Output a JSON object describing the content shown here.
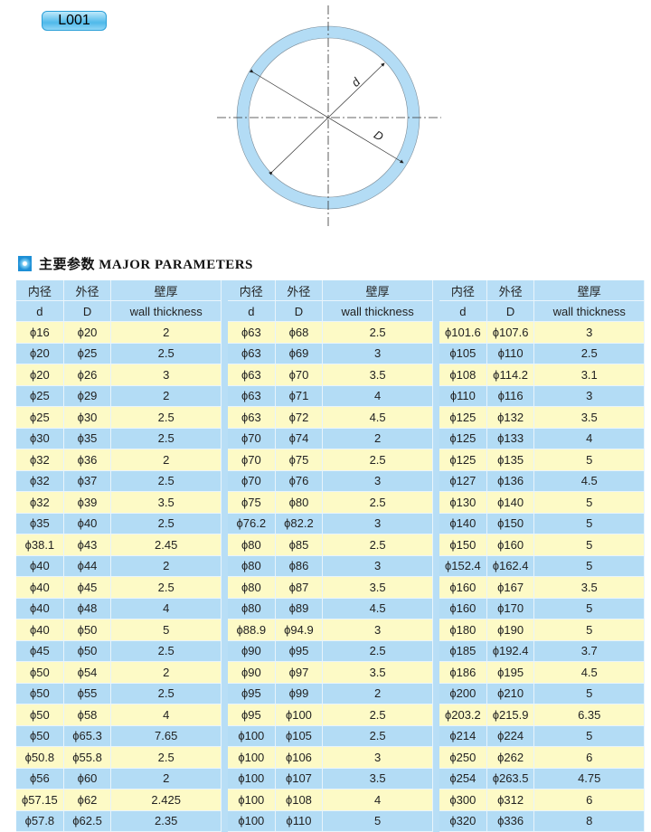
{
  "badge": "L001",
  "diagram": {
    "inner_label": "d",
    "outer_label": "D",
    "ring_color": "#b3dcf5"
  },
  "section": {
    "title": "主要参数 MAJOR PARAMETERS"
  },
  "headers": {
    "inner_cn": "内径",
    "outer_cn": "外径",
    "wall_cn": "壁厚",
    "inner_en": "d",
    "outer_en": "D",
    "wall_en": "wall thickness"
  },
  "colors": {
    "header": "#b8def6",
    "row_yellow": "#fdfac6",
    "row_blue": "#b3dcf5"
  },
  "blocks": [
    [
      [
        "ϕ16",
        "ϕ20",
        "2"
      ],
      [
        "ϕ20",
        "ϕ25",
        "2.5"
      ],
      [
        "ϕ20",
        "ϕ26",
        "3"
      ],
      [
        "ϕ25",
        "ϕ29",
        "2"
      ],
      [
        "ϕ25",
        "ϕ30",
        "2.5"
      ],
      [
        "ϕ30",
        "ϕ35",
        "2.5"
      ],
      [
        "ϕ32",
        "ϕ36",
        "2"
      ],
      [
        "ϕ32",
        "ϕ37",
        "2.5"
      ],
      [
        "ϕ32",
        "ϕ39",
        "3.5"
      ],
      [
        "ϕ35",
        "ϕ40",
        "2.5"
      ],
      [
        "ϕ38.1",
        "ϕ43",
        "2.45"
      ],
      [
        "ϕ40",
        "ϕ44",
        "2"
      ],
      [
        "ϕ40",
        "ϕ45",
        "2.5"
      ],
      [
        "ϕ40",
        "ϕ48",
        "4"
      ],
      [
        "ϕ40",
        "ϕ50",
        "5"
      ],
      [
        "ϕ45",
        "ϕ50",
        "2.5"
      ],
      [
        "ϕ50",
        "ϕ54",
        "2"
      ],
      [
        "ϕ50",
        "ϕ55",
        "2.5"
      ],
      [
        "ϕ50",
        "ϕ58",
        "4"
      ],
      [
        "ϕ50",
        "ϕ65.3",
        "7.65"
      ],
      [
        "ϕ50.8",
        "ϕ55.8",
        "2.5"
      ],
      [
        "ϕ56",
        "ϕ60",
        "2"
      ],
      [
        "ϕ57.15",
        "ϕ62",
        "2.425"
      ],
      [
        "ϕ57.8",
        "ϕ62.5",
        "2.35"
      ]
    ],
    [
      [
        "ϕ63",
        "ϕ68",
        "2.5"
      ],
      [
        "ϕ63",
        "ϕ69",
        "3"
      ],
      [
        "ϕ63",
        "ϕ70",
        "3.5"
      ],
      [
        "ϕ63",
        "ϕ71",
        "4"
      ],
      [
        "ϕ63",
        "ϕ72",
        "4.5"
      ],
      [
        "ϕ70",
        "ϕ74",
        "2"
      ],
      [
        "ϕ70",
        "ϕ75",
        "2.5"
      ],
      [
        "ϕ70",
        "ϕ76",
        "3"
      ],
      [
        "ϕ75",
        "ϕ80",
        "2.5"
      ],
      [
        "ϕ76.2",
        "ϕ82.2",
        "3"
      ],
      [
        "ϕ80",
        "ϕ85",
        "2.5"
      ],
      [
        "ϕ80",
        "ϕ86",
        "3"
      ],
      [
        "ϕ80",
        "ϕ87",
        "3.5"
      ],
      [
        "ϕ80",
        "ϕ89",
        "4.5"
      ],
      [
        "ϕ88.9",
        "ϕ94.9",
        "3"
      ],
      [
        "ϕ90",
        "ϕ95",
        "2.5"
      ],
      [
        "ϕ90",
        "ϕ97",
        "3.5"
      ],
      [
        "ϕ95",
        "ϕ99",
        "2"
      ],
      [
        "ϕ95",
        "ϕ100",
        "2.5"
      ],
      [
        "ϕ100",
        "ϕ105",
        "2.5"
      ],
      [
        "ϕ100",
        "ϕ106",
        "3"
      ],
      [
        "ϕ100",
        "ϕ107",
        "3.5"
      ],
      [
        "ϕ100",
        "ϕ108",
        "4"
      ],
      [
        "ϕ100",
        "ϕ110",
        "5"
      ]
    ],
    [
      [
        "ϕ101.6",
        "ϕ107.6",
        "3"
      ],
      [
        "ϕ105",
        "ϕ110",
        "2.5"
      ],
      [
        "ϕ108",
        "ϕ114.2",
        "3.1"
      ],
      [
        "ϕ110",
        "ϕ116",
        "3"
      ],
      [
        "ϕ125",
        "ϕ132",
        "3.5"
      ],
      [
        "ϕ125",
        "ϕ133",
        "4"
      ],
      [
        "ϕ125",
        "ϕ135",
        "5"
      ],
      [
        "ϕ127",
        "ϕ136",
        "4.5"
      ],
      [
        "ϕ130",
        "ϕ140",
        "5"
      ],
      [
        "ϕ140",
        "ϕ150",
        "5"
      ],
      [
        "ϕ150",
        "ϕ160",
        "5"
      ],
      [
        "ϕ152.4",
        "ϕ162.4",
        "5"
      ],
      [
        "ϕ160",
        "ϕ167",
        "3.5"
      ],
      [
        "ϕ160",
        "ϕ170",
        "5"
      ],
      [
        "ϕ180",
        "ϕ190",
        "5"
      ],
      [
        "ϕ185",
        "ϕ192.4",
        "3.7"
      ],
      [
        "ϕ186",
        "ϕ195",
        "4.5"
      ],
      [
        "ϕ200",
        "ϕ210",
        "5"
      ],
      [
        "ϕ203.2",
        "ϕ215.9",
        "6.35"
      ],
      [
        "ϕ214",
        "ϕ224",
        "5"
      ],
      [
        "ϕ250",
        "ϕ262",
        "6"
      ],
      [
        "ϕ254",
        "ϕ263.5",
        "4.75"
      ],
      [
        "ϕ300",
        "ϕ312",
        "6"
      ],
      [
        "ϕ320",
        "ϕ336",
        "8"
      ]
    ]
  ]
}
